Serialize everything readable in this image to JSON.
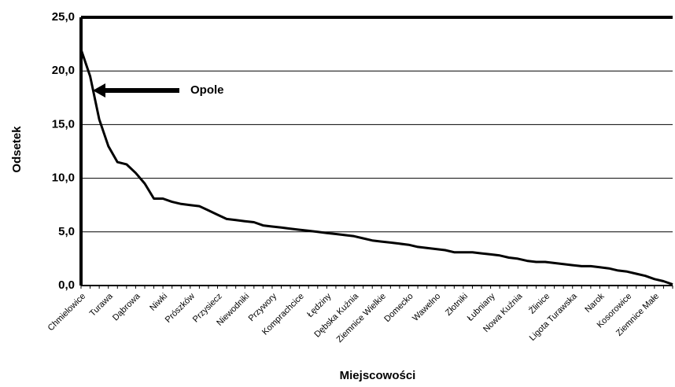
{
  "chart_data": {
    "type": "line",
    "y_label": "Odsetek",
    "x_label": "Miejscowości",
    "annotation": "Opole",
    "categories": [
      "Chmielowice",
      null,
      null,
      "Turawa",
      null,
      null,
      "Dąbrowa",
      null,
      null,
      "Niwki",
      null,
      null,
      "Prószków",
      null,
      null,
      "Przysiecz",
      null,
      null,
      "Niewodniki",
      null,
      null,
      "Przywory",
      null,
      null,
      "Komprachcice",
      null,
      null,
      "Łędziny",
      null,
      null,
      "Dębska Kuźnia",
      null,
      null,
      "Ziemnice Wielkie",
      null,
      null,
      "Domecko",
      null,
      null,
      "Wawelno",
      null,
      null,
      "Złotniki",
      null,
      null,
      "Łubniany",
      null,
      null,
      "Nowa Kuźnia",
      null,
      null,
      "Źlinice",
      null,
      null,
      "Ligota Turawska",
      null,
      null,
      "Narok",
      null,
      null,
      "Kosorowice",
      null,
      null,
      "Ziemnice Małe",
      null,
      null
    ],
    "values": [
      22,
      19.5,
      15.5,
      13,
      11.5,
      11.3,
      10.5,
      9.5,
      8.1,
      8.1,
      7.8,
      7.6,
      7.5,
      7.4,
      7.0,
      6.6,
      6.2,
      6.1,
      6.0,
      5.9,
      5.6,
      5.5,
      5.4,
      5.3,
      5.2,
      5.1,
      5.0,
      4.9,
      4.8,
      4.7,
      4.6,
      4.4,
      4.2,
      4.1,
      4.0,
      3.9,
      3.8,
      3.6,
      3.5,
      3.4,
      3.3,
      3.1,
      3.1,
      3.1,
      3.0,
      2.9,
      2.8,
      2.6,
      2.5,
      2.3,
      2.2,
      2.2,
      2.1,
      2.0,
      1.9,
      1.8,
      1.8,
      1.7,
      1.6,
      1.4,
      1.3,
      1.1,
      0.9,
      0.6,
      0.4,
      0.1
    ],
    "color": "#000000",
    "ylim": [
      0,
      25
    ],
    "yticks": [
      {
        "value": 0,
        "label": "0,0"
      },
      {
        "value": 5,
        "label": "5,0"
      },
      {
        "value": 10,
        "label": "10,0"
      },
      {
        "value": 15,
        "label": "15,0"
      },
      {
        "value": 20,
        "label": "20,0"
      },
      {
        "value": 25,
        "label": "25,0"
      }
    ],
    "grid": true
  }
}
